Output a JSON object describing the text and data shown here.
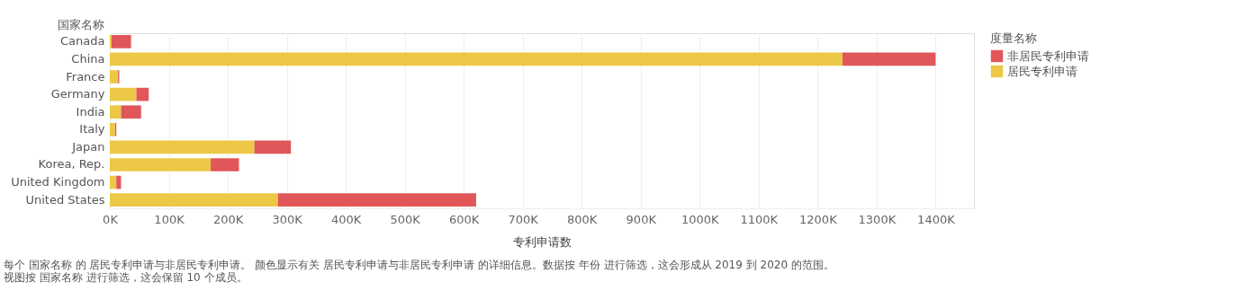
{
  "chart_data": {
    "type": "bar",
    "orientation": "horizontal",
    "stacked": true,
    "ylabel": "国家名称",
    "xlabel": "专利申请数",
    "legend_title": "度量名称",
    "legend": "top right",
    "categories": [
      "Canada",
      "China",
      "France",
      "Germany",
      "India",
      "Italy",
      "Japan",
      "Korea, Rep.",
      "United Kingdom",
      "United States"
    ],
    "series": [
      {
        "name": "居民专利申请",
        "color": "#ecc846",
        "values": [
          3000,
          1242000,
          14000,
          45000,
          19000,
          9000,
          245000,
          171000,
          11000,
          285000
        ]
      },
      {
        "name": "非居民专利申请",
        "color": "#e15759",
        "values": [
          33000,
          158000,
          2000,
          21000,
          34000,
          2000,
          62000,
          48000,
          8000,
          336000
        ]
      }
    ],
    "xlim": [
      0,
      1465000
    ],
    "xticks": [
      {
        "value": 0,
        "label": "0K"
      },
      {
        "value": 100000,
        "label": "100K"
      },
      {
        "value": 200000,
        "label": "200K"
      },
      {
        "value": 300000,
        "label": "300K"
      },
      {
        "value": 400000,
        "label": "400K"
      },
      {
        "value": 500000,
        "label": "500K"
      },
      {
        "value": 600000,
        "label": "600K"
      },
      {
        "value": 700000,
        "label": "700K"
      },
      {
        "value": 800000,
        "label": "800K"
      },
      {
        "value": 900000,
        "label": "900K"
      },
      {
        "value": 1000000,
        "label": "1000K"
      },
      {
        "value": 1100000,
        "label": "1100K"
      },
      {
        "value": 1200000,
        "label": "1200K"
      },
      {
        "value": 1300000,
        "label": "1300K"
      },
      {
        "value": 1400000,
        "label": "1400K"
      }
    ],
    "grid": "x",
    "annotations": [
      "每个 国家名称 的 居民专利申请与非居民专利申请。 颜色显示有关 居民专利申请与非居民专利申请 的详细信息。数据按 年份 进行筛选，这会形成从 2019 到 2020 的范围。视图按 国家名称 进行筛选，这会保留 10 个成员。"
    ]
  }
}
